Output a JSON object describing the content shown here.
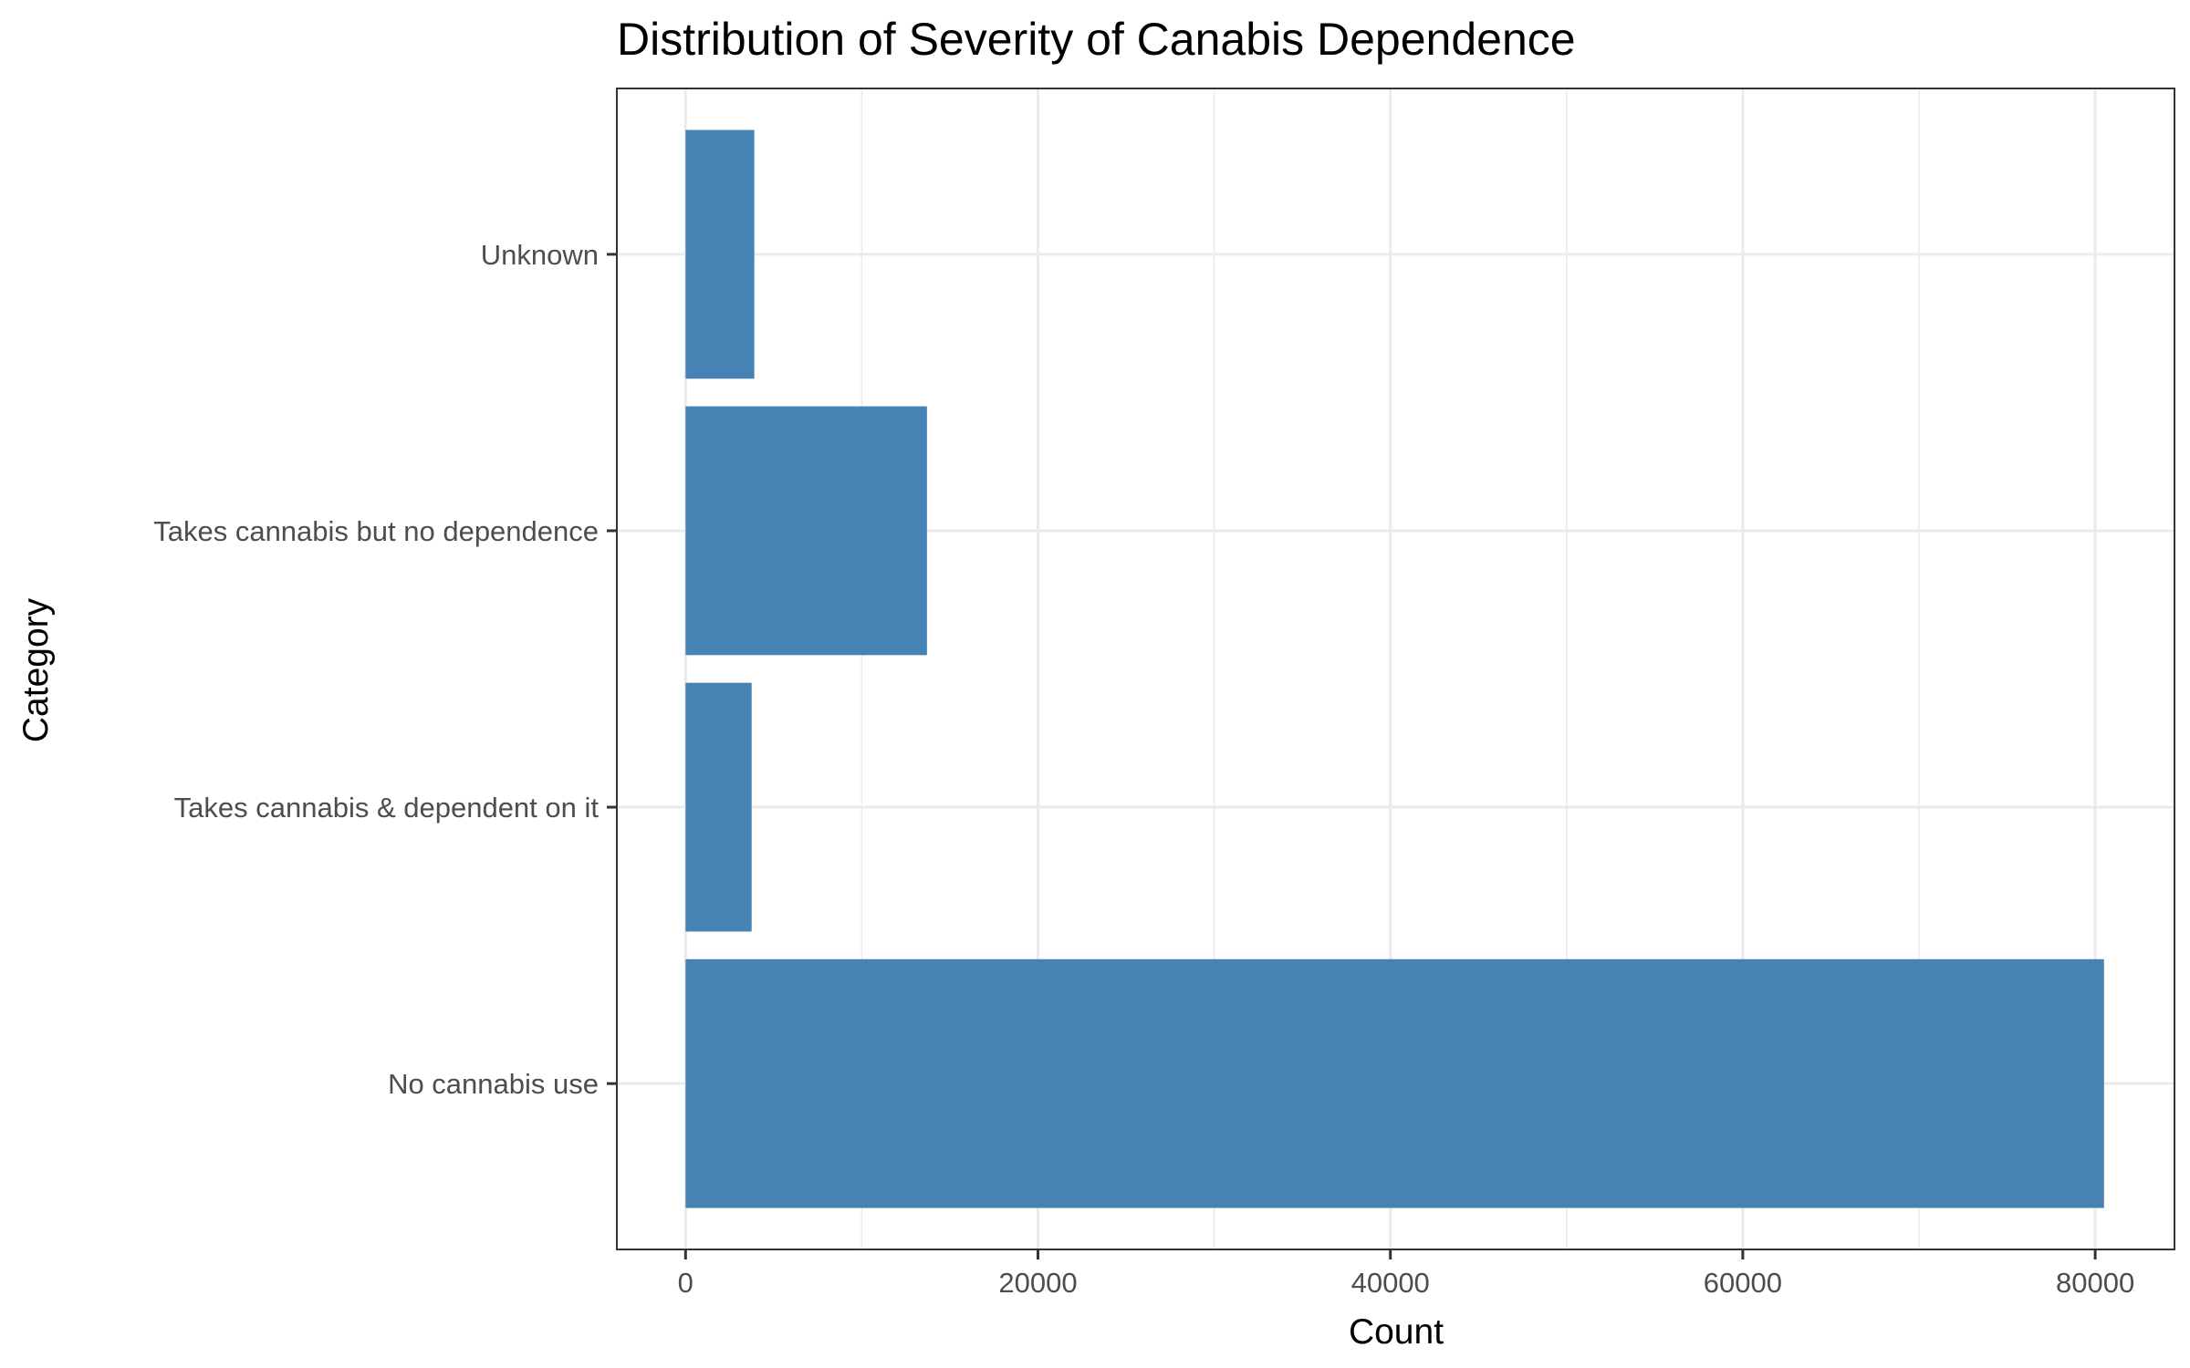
{
  "chart_data": {
    "type": "bar",
    "orientation": "horizontal",
    "title": "Distribution of Severity of Canabis Dependence",
    "xlabel": "Count",
    "ylabel": "Category",
    "categories": [
      "No cannabis use",
      "Takes cannabis & dependent on it",
      "Takes cannabis but no dependence",
      "Unknown"
    ],
    "values": [
      80500,
      3750,
      13700,
      3900
    ],
    "xlim": [
      -3900,
      84500
    ],
    "xticks": [
      0,
      20000,
      40000,
      60000,
      80000
    ],
    "xtick_labels": [
      "0",
      "20000",
      "40000",
      "60000",
      "80000"
    ],
    "grid": true,
    "legend": "none",
    "colors": {
      "bar": "#4682b4",
      "grid": "#ebebeb",
      "panel_border": "#333333",
      "tick": "#333333",
      "tick_label": "#4d4d4d",
      "text": "#000000"
    }
  }
}
